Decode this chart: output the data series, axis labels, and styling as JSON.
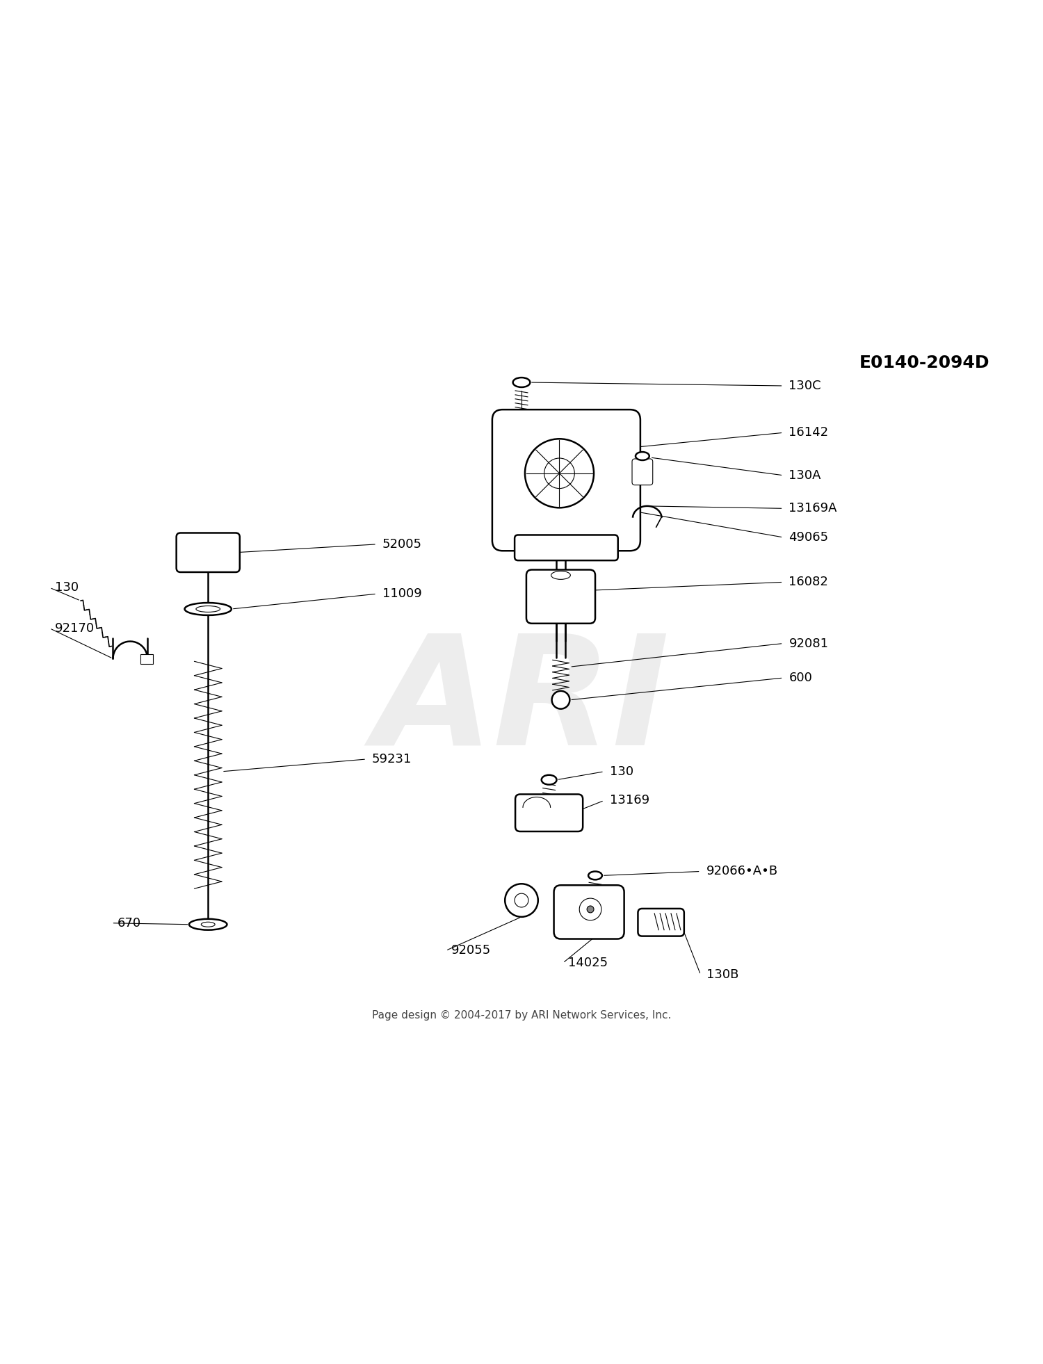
{
  "bg_color": "#ffffff",
  "diagram_id": "E0140-2094D",
  "footer": "Page design © 2004-2017 by ARI Network Services, Inc.",
  "watermark": "ARI",
  "fig_w": 15.0,
  "fig_h": 19.62,
  "dpi": 100,
  "label_fontsize": 13,
  "id_fontsize": 18,
  "footer_fontsize": 11,
  "wm_fontsize": 160,
  "wm_color": "#d8d8d8",
  "wm_alpha": 0.45,
  "line_color": "#000000",
  "lw_thick": 1.8,
  "lw_med": 1.2,
  "lw_thin": 0.8
}
